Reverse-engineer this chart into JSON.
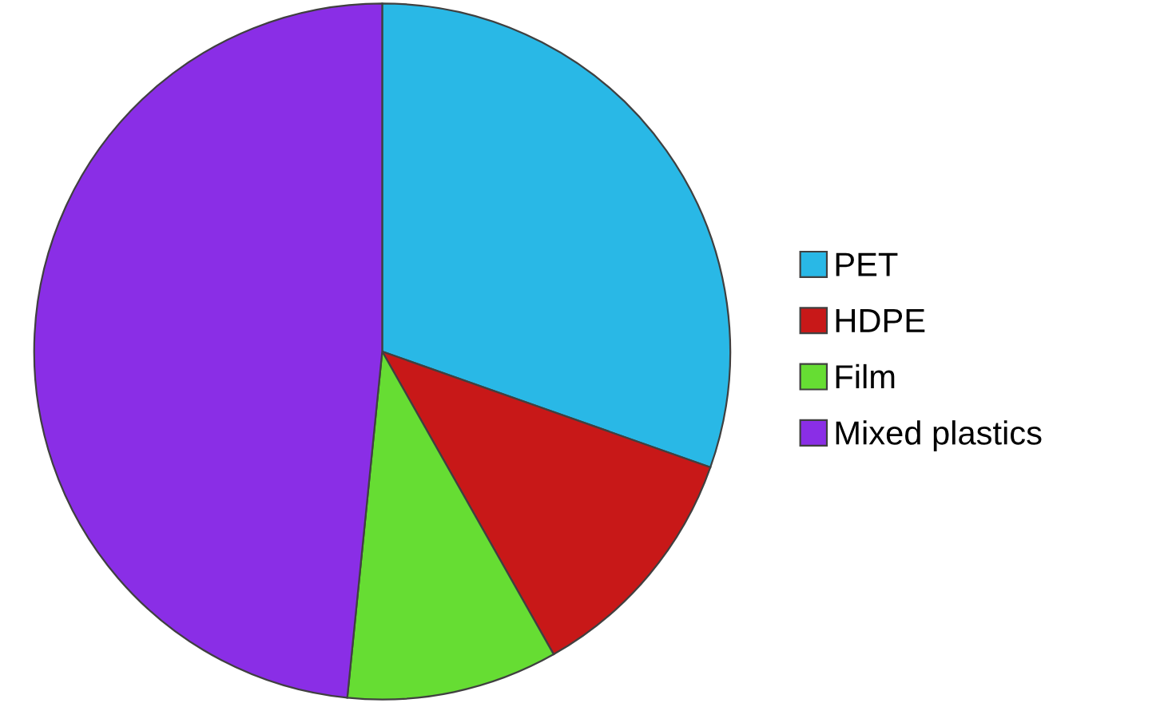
{
  "chart_data": {
    "type": "pie",
    "categories": [
      "PET",
      "HDPE",
      "Film",
      "Mixed plastics"
    ],
    "values": [
      30.4,
      11.4,
      9.8,
      48.4
    ],
    "colors": [
      "#29b8e6",
      "#c81818",
      "#66dd33",
      "#8a2ee6"
    ],
    "legend": "right"
  }
}
